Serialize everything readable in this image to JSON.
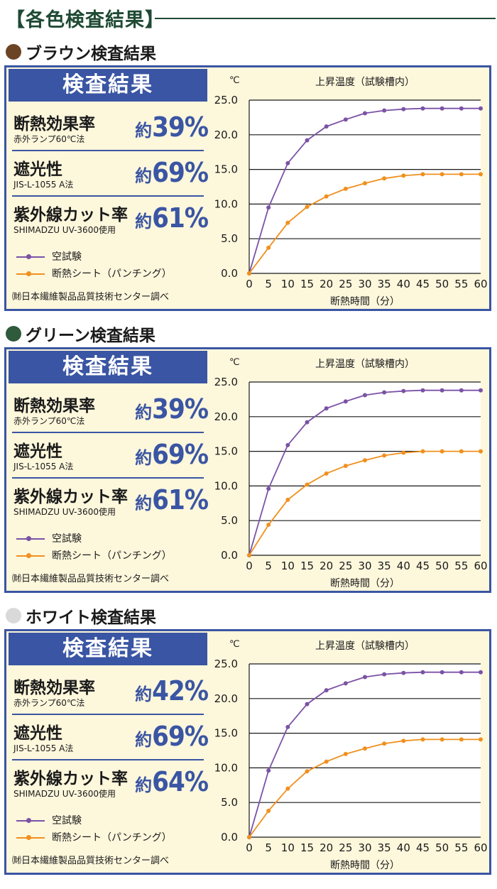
{
  "page": {
    "title": "【各色検査結果】"
  },
  "colors": {
    "panel_border": "#3a55a3",
    "panel_bg": "#fdf7dc",
    "heading": "#1f4a34",
    "series_blank": "#7b52a6",
    "series_insulation": "#f0901e"
  },
  "sections": [
    {
      "heading": "ブラウン検査結果",
      "dot_color": "#6b4426",
      "badge": "検査結果",
      "results": [
        {
          "label": "断熱効果率",
          "sub": "赤外ランプ60℃法",
          "prefix": "約",
          "value": "39%"
        },
        {
          "label": "遮光性",
          "sub": "JIS-L-1055 A法",
          "prefix": "約",
          "value": "69%"
        },
        {
          "label": "紫外線カット率",
          "sub": "SHIMADZU UV-3600使用",
          "prefix": "約",
          "value": "61%"
        }
      ],
      "legend": [
        "空試験",
        "断熱シート（パンチング）"
      ],
      "source": "㈶日本繊維製品品質技術センター調べ"
    },
    {
      "heading": "グリーン検査結果",
      "dot_color": "#2f5a3c",
      "badge": "検査結果",
      "results": [
        {
          "label": "断熱効果率",
          "sub": "赤外ランプ60℃法",
          "prefix": "約",
          "value": "39%"
        },
        {
          "label": "遮光性",
          "sub": "JIS-L-1055 A法",
          "prefix": "約",
          "value": "69%"
        },
        {
          "label": "紫外線カット率",
          "sub": "SHIMADZU UV-3600使用",
          "prefix": "約",
          "value": "61%"
        }
      ],
      "legend": [
        "空試験",
        "断熱シート（パンチング）"
      ],
      "source": "㈶日本繊維製品品質技術センター調べ"
    },
    {
      "heading": "ホワイト検査結果",
      "dot_color": "#d9d9d9",
      "badge": "検査結果",
      "results": [
        {
          "label": "断熱効果率",
          "sub": "赤外ランプ60℃法",
          "prefix": "約",
          "value": "42%"
        },
        {
          "label": "遮光性",
          "sub": "JIS-L-1055 A法",
          "prefix": "約",
          "value": "69%"
        },
        {
          "label": "紫外線カット率",
          "sub": "SHIMADZU UV-3600使用",
          "prefix": "約",
          "value": "64%"
        }
      ],
      "legend": [
        "空試験",
        "断熱シート（パンチング）"
      ],
      "source": "㈶日本繊維製品品質技術センター調べ"
    }
  ],
  "chart_data": [
    {
      "type": "line",
      "title": "上昇温度（試験槽内）",
      "xlabel": "断熱時間（分）",
      "ylabel": "℃",
      "x": [
        0,
        5,
        10,
        15,
        20,
        25,
        30,
        35,
        40,
        45,
        50,
        55,
        60
      ],
      "xlim": [
        0,
        60
      ],
      "ylim": [
        0,
        25
      ],
      "yticks": [
        "0.0",
        "5.0",
        "10.0",
        "15.0",
        "20.0",
        "25.0"
      ],
      "grid": true,
      "series": [
        {
          "name": "空試験",
          "color": "#7b52a6",
          "values": [
            0,
            9.5,
            15.9,
            19.2,
            21.2,
            22.2,
            23.1,
            23.5,
            23.7,
            23.8,
            23.8,
            23.8,
            23.8
          ]
        },
        {
          "name": "断熱シート（パンチング）",
          "color": "#f0901e",
          "values": [
            0,
            3.7,
            7.3,
            9.6,
            11.1,
            12.2,
            13.0,
            13.7,
            14.1,
            14.3,
            14.3,
            14.3,
            14.3
          ]
        }
      ]
    },
    {
      "type": "line",
      "title": "上昇温度（試験槽内）",
      "xlabel": "断熱時間（分）",
      "ylabel": "℃",
      "x": [
        0,
        5,
        10,
        15,
        20,
        25,
        30,
        35,
        40,
        45,
        50,
        55,
        60
      ],
      "xlim": [
        0,
        60
      ],
      "ylim": [
        0,
        25
      ],
      "yticks": [
        "0.0",
        "5.0",
        "10.0",
        "15.0",
        "20.0",
        "25.0"
      ],
      "grid": true,
      "series": [
        {
          "name": "空試験",
          "color": "#7b52a6",
          "values": [
            0,
            9.6,
            15.9,
            19.2,
            21.2,
            22.2,
            23.1,
            23.5,
            23.7,
            23.8,
            23.8,
            23.8,
            23.8
          ]
        },
        {
          "name": "断熱シート（パンチング）",
          "color": "#f0901e",
          "values": [
            0,
            4.4,
            8.0,
            10.2,
            11.8,
            12.9,
            13.7,
            14.4,
            14.8,
            15.0,
            15.0,
            15.0,
            15.0
          ]
        }
      ]
    },
    {
      "type": "line",
      "title": "上昇温度（試験槽内）",
      "xlabel": "断熱時間（分）",
      "ylabel": "℃",
      "x": [
        0,
        5,
        10,
        15,
        20,
        25,
        30,
        35,
        40,
        45,
        50,
        55,
        60
      ],
      "xlim": [
        0,
        60
      ],
      "ylim": [
        0,
        25
      ],
      "yticks": [
        "0.0",
        "5.0",
        "10.0",
        "15.0",
        "20.0",
        "25.0"
      ],
      "grid": true,
      "series": [
        {
          "name": "空試験",
          "color": "#7b52a6",
          "values": [
            0,
            9.6,
            15.9,
            19.2,
            21.2,
            22.2,
            23.1,
            23.5,
            23.7,
            23.8,
            23.8,
            23.8,
            23.8
          ]
        },
        {
          "name": "断熱シート（パンチング）",
          "color": "#f0901e",
          "values": [
            0,
            3.8,
            7.0,
            9.5,
            10.9,
            12.0,
            12.8,
            13.5,
            13.9,
            14.1,
            14.1,
            14.1,
            14.1
          ]
        }
      ]
    }
  ]
}
